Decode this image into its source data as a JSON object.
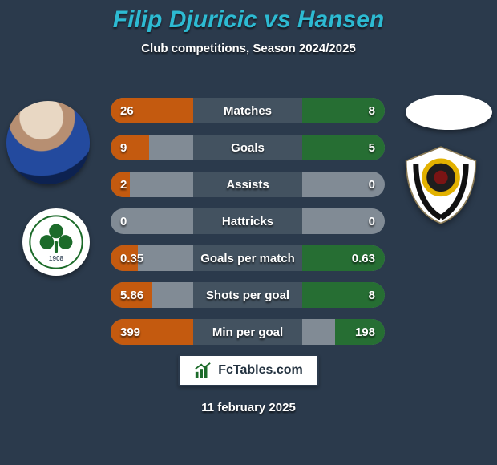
{
  "background_color": "#2b3a4c",
  "title": {
    "player1_name": "Filip Djuricic",
    "vs_text": "vs",
    "player2_name": "Hansen",
    "fontsize": 30,
    "player1_color": "#2dbad2",
    "vs_color": "#2dbad2",
    "player2_color": "#2dbad2"
  },
  "subtitle": {
    "text": "Club competitions, Season 2024/2025",
    "fontsize": 15
  },
  "stats": {
    "label_fontsize": 15,
    "value_fontsize": 15,
    "label_color": "#ffffff",
    "value_color": "#ffffff",
    "pill_height": 32,
    "pill_gap": 14,
    "track_color": "#818b95",
    "left_fill_color": "#c45a0f",
    "right_fill_color": "#266e33",
    "center_band_color": "#435260",
    "rows": [
      {
        "label": "Matches",
        "left_value": "26",
        "right_value": "8",
        "left_fill_pct": 30,
        "right_fill_pct": 30
      },
      {
        "label": "Goals",
        "left_value": "9",
        "right_value": "5",
        "left_fill_pct": 14,
        "right_fill_pct": 30
      },
      {
        "label": "Assists",
        "left_value": "2",
        "right_value": "0",
        "left_fill_pct": 7,
        "right_fill_pct": 0
      },
      {
        "label": "Hattricks",
        "left_value": "0",
        "right_value": "0",
        "left_fill_pct": 0,
        "right_fill_pct": 0
      },
      {
        "label": "Goals per match",
        "left_value": "0.35",
        "right_value": "0.63",
        "left_fill_pct": 10,
        "right_fill_pct": 30
      },
      {
        "label": "Shots per goal",
        "left_value": "5.86",
        "right_value": "8",
        "left_fill_pct": 15,
        "right_fill_pct": 30
      },
      {
        "label": "Min per goal",
        "left_value": "399",
        "right_value": "198",
        "left_fill_pct": 30,
        "right_fill_pct": 18
      }
    ]
  },
  "footer": {
    "brand_text": "FcTables.com",
    "brand_color": "#22313f",
    "box_border_color": "#2b3a4c",
    "icon_color": "#1c6b2a"
  },
  "date": {
    "text": "11 february 2025"
  },
  "club_left_badge": {
    "ring_color": "#1c6b2a",
    "leaf_color": "#1c6b2a",
    "year_text": "1908",
    "year_color": "#4b5a6b"
  },
  "club_right_badge": {
    "shield_fill": "#ffffff",
    "stripe_color": "#111111",
    "ball_color": "#1e1e1e",
    "ball_band_color": "#e2b100",
    "inner_red": "#7a1414"
  }
}
